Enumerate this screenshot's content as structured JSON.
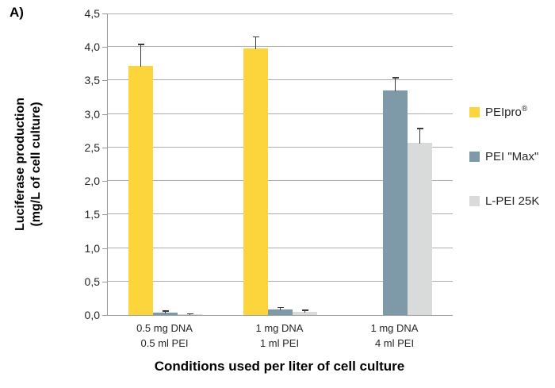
{
  "figure_label": "A)",
  "y_axis": {
    "title_line1": "Luciferase production",
    "title_line2": "(mg/L of cell culture)",
    "tick_values": [
      4.5,
      4.0,
      3.5,
      3.0,
      2.5,
      2.0,
      1.5,
      1.0,
      0.5,
      0.0
    ],
    "tick_labels": [
      "4,5",
      "4,0",
      "3,5",
      "3,0",
      "2,5",
      "2,0",
      "1,5",
      "1,0",
      "0,5",
      "0,0"
    ]
  },
  "x_axis": {
    "title": "Conditions used per liter of cell culture"
  },
  "chart_data": {
    "type": "bar",
    "title": "",
    "xlabel": "Conditions used per liter of cell culture",
    "ylabel": "Luciferase production (mg/L of cell culture)",
    "ylim": [
      0,
      4.5
    ],
    "ytick_step": 0.5,
    "grid": true,
    "legend_position": "right",
    "categories": [
      {
        "line1": "0.5 mg DNA",
        "line2": "0.5 ml PEI"
      },
      {
        "line1": "1 mg DNA",
        "line2": "1 ml PEI"
      },
      {
        "line1": "1 mg DNA",
        "line2": "4 ml PEI"
      }
    ],
    "series": [
      {
        "name": "PEIpro®",
        "color": "#fcd43c",
        "values": [
          3.72,
          3.98,
          0
        ],
        "errors": [
          0.33,
          0.18,
          0
        ]
      },
      {
        "name": "PEI \"Max\"",
        "color": "#7e99a7",
        "values": [
          0.04,
          0.08,
          3.35
        ],
        "errors": [
          0.03,
          0.04,
          0.2
        ]
      },
      {
        "name": "L-PEI 25K",
        "color": "#d9dbdb",
        "values": [
          0.015,
          0.05,
          2.57
        ],
        "errors": [
          0.01,
          0.03,
          0.22
        ]
      }
    ]
  }
}
